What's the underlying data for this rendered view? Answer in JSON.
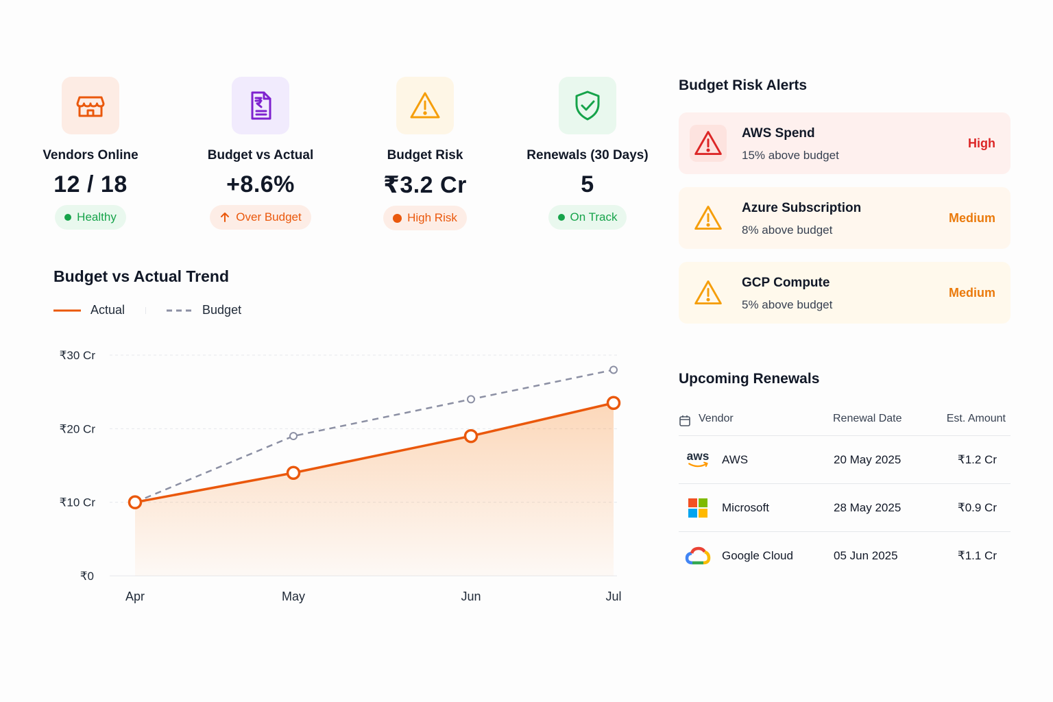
{
  "kpis": [
    {
      "label": "Vendors Online",
      "value": "12 / 18",
      "badge": "Healthy",
      "icon": "store-icon",
      "icon_color": "#ea580c",
      "icon_bg": "#fdece4",
      "badge_color": "#16a34a",
      "badge_bg": "#e9f8ee"
    },
    {
      "label": "Budget vs Actual",
      "value": "+8.6%",
      "badge": "Over Budget",
      "icon": "rupee-document-icon",
      "icon_color": "#7e22ce",
      "icon_bg": "#f1ebfd",
      "badge_color": "#ea580c",
      "badge_bg": "#fdede6"
    },
    {
      "label": "Budget Risk",
      "value": "₹3.2 Cr",
      "badge": "High Risk",
      "icon": "warning-icon",
      "icon_color": "#f59e0b",
      "icon_bg": "#fef6e6",
      "badge_color": "#ea580c",
      "badge_bg": "#fdede6"
    },
    {
      "label": "Renewals (30 Days)",
      "value": "5",
      "badge": "On Track",
      "icon": "shield-check-icon",
      "icon_color": "#16a34a",
      "icon_bg": "#e9f8ee",
      "badge_color": "#16a34a",
      "badge_bg": "#e9f8ee"
    }
  ],
  "trend": {
    "title": "Budget vs Actual Trend"
  },
  "chart_data": {
    "type": "line",
    "title": "Budget vs Actual Trend",
    "categories": [
      "Apr",
      "May",
      "Jun",
      "Jul"
    ],
    "series": [
      {
        "name": "Actual",
        "values": [
          10,
          14,
          19,
          23.5
        ],
        "color": "#ea580c",
        "style": "solid",
        "area_fill": true
      },
      {
        "name": "Budget",
        "values": [
          10,
          19,
          24,
          28
        ],
        "color": "#8b8fa3",
        "style": "dashed"
      }
    ],
    "y_ticks": [
      "₹0",
      "₹10 Cr",
      "₹20 Cr",
      "₹30 Cr"
    ],
    "ylim": [
      0,
      30
    ],
    "grid": true,
    "legend": "top-left"
  },
  "alerts": {
    "title": "Budget Risk Alerts",
    "items": [
      {
        "title": "AWS Spend",
        "subtitle": "15% above budget",
        "level": "High",
        "color": "#dc2626",
        "bg": "#fef0ee"
      },
      {
        "title": "Azure Subscription",
        "subtitle": "8% above budget",
        "level": "Medium",
        "color": "#ea7a0c",
        "bg": "#fff7ee"
      },
      {
        "title": "GCP Compute",
        "subtitle": "5% above budget",
        "level": "Medium",
        "color": "#ea7a0c",
        "bg": "#fff9ec"
      }
    ]
  },
  "renewals": {
    "title": "Upcoming Renewals",
    "columns": [
      "Vendor",
      "Renewal Date",
      "Est. Amount"
    ],
    "rows": [
      {
        "vendor": "AWS",
        "date": "20 May 2025",
        "amount": "₹1.2 Cr",
        "logo": "aws-logo",
        "logo_text": "aws"
      },
      {
        "vendor": "Microsoft",
        "date": "28 May 2025",
        "amount": "₹0.9 Cr",
        "logo": "microsoft-logo"
      },
      {
        "vendor": "Google Cloud",
        "date": "05 Jun 2025",
        "amount": "₹1.1 Cr",
        "logo": "google-cloud-logo"
      }
    ]
  }
}
